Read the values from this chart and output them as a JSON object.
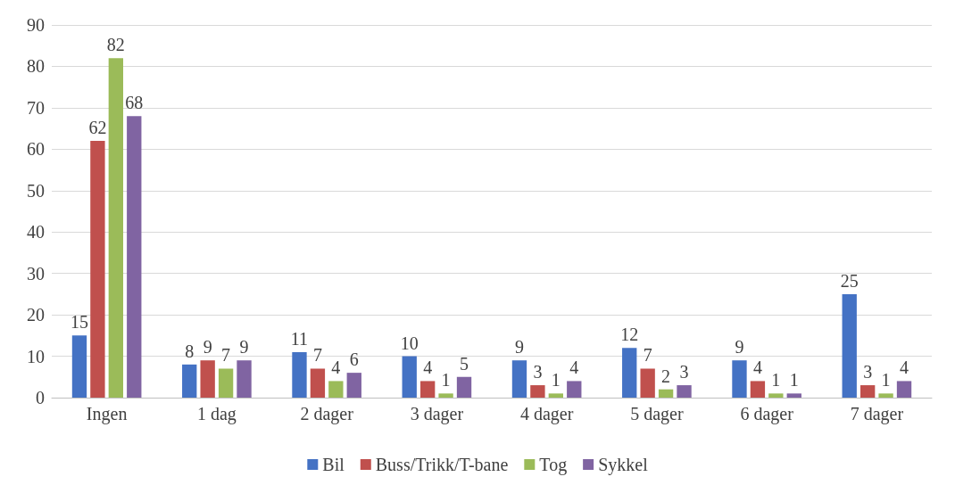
{
  "chart_data": {
    "type": "bar",
    "categories": [
      "Ingen",
      "1 dag",
      "2 dager",
      "3 dager",
      "4 dager",
      "5 dager",
      "6 dager",
      "7 dager"
    ],
    "series": [
      {
        "name": "Bil",
        "color": "#4472c4",
        "values": [
          15,
          8,
          11,
          10,
          9,
          12,
          9,
          25
        ]
      },
      {
        "name": "Buss/Trikk/T-bane",
        "color": "#c0504d",
        "values": [
          62,
          9,
          7,
          4,
          3,
          7,
          4,
          3
        ]
      },
      {
        "name": "Tog",
        "color": "#9bbb59",
        "values": [
          82,
          7,
          4,
          1,
          1,
          2,
          1,
          1
        ]
      },
      {
        "name": "Sykkel",
        "color": "#8064a2",
        "values": [
          68,
          9,
          6,
          5,
          4,
          3,
          1,
          4
        ]
      }
    ],
    "ylim": [
      0,
      90
    ],
    "yticks": [
      0,
      10,
      20,
      30,
      40,
      50,
      60,
      70,
      80,
      90
    ],
    "grid": "y",
    "legend": "bottom",
    "data_labels": true
  }
}
